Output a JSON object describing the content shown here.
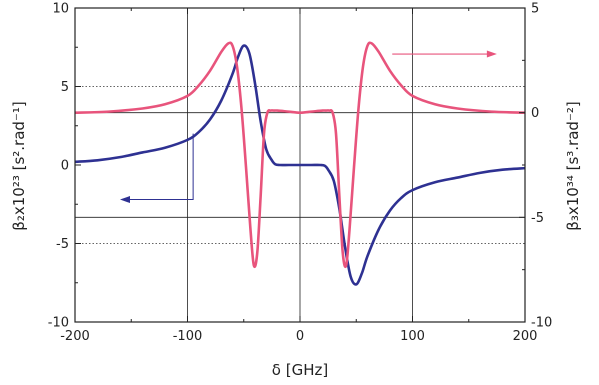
{
  "chart_data": {
    "type": "line",
    "x_axis": {
      "label": "δ [GHz]",
      "range": [
        -200,
        200
      ],
      "ticks": [
        -200,
        -100,
        0,
        100,
        200
      ],
      "tick_labels": [
        "-200",
        "-100",
        "0",
        "100",
        "200"
      ]
    },
    "y_left_axis": {
      "label": "β₂x10²³ [s².rad⁻¹]",
      "range": [
        -10,
        10
      ],
      "ticks": [
        -10,
        -5,
        0,
        5,
        10
      ],
      "tick_labels": [
        "-10",
        "-5",
        "0",
        "5",
        "10"
      ]
    },
    "y_right_axis": {
      "label": "β₃x10³⁴ [s³.rad⁻²]",
      "range": [
        -10,
        5
      ],
      "ticks": [
        -10,
        -5,
        0,
        5
      ],
      "tick_labels": [
        "-10",
        "-5",
        "0",
        "5"
      ]
    },
    "grid": {
      "vertical_solid": [
        -100,
        0,
        100
      ],
      "horizontal_dotted_left": [
        5,
        -5
      ],
      "horizontal_solid_right": [
        0,
        -5
      ]
    },
    "series": [
      {
        "axis": "left",
        "color": "#2e3192",
        "x": [
          -200,
          -180,
          -160,
          -140,
          -120,
          -100,
          -90,
          -80,
          -70,
          -60,
          -55,
          -50,
          -45,
          -40,
          -35,
          -30,
          -25,
          -22,
          -18,
          -10,
          0,
          10,
          18,
          22,
          25,
          30,
          35,
          40,
          45,
          50,
          55,
          60,
          70,
          80,
          90,
          100,
          120,
          140,
          160,
          180,
          200
        ],
        "values": [
          0.2,
          0.3,
          0.5,
          0.8,
          1.1,
          1.6,
          2.1,
          2.9,
          4.1,
          5.8,
          6.9,
          7.6,
          7.1,
          5.2,
          2.8,
          1.0,
          0.3,
          0.05,
          0.0,
          0.0,
          0.0,
          0.0,
          0.0,
          -0.05,
          -0.3,
          -1.0,
          -2.8,
          -5.2,
          -7.1,
          -7.6,
          -6.9,
          -5.8,
          -4.1,
          -2.9,
          -2.1,
          -1.6,
          -1.1,
          -0.8,
          -0.5,
          -0.3,
          -0.2
        ]
      },
      {
        "axis": "right",
        "color": "#e8547c",
        "x": [
          -200,
          -170,
          -140,
          -120,
          -100,
          -90,
          -80,
          -70,
          -64,
          -60,
          -56,
          -52,
          -48,
          -44,
          -41,
          -38,
          -35,
          -32,
          -29,
          -26,
          -23,
          -20,
          -10,
          0,
          10,
          20,
          23,
          26,
          29,
          32,
          35,
          38,
          41,
          44,
          48,
          52,
          56,
          60,
          64,
          70,
          80,
          90,
          100,
          120,
          140,
          170,
          200
        ],
        "values": [
          0.0,
          0.05,
          0.2,
          0.4,
          0.8,
          1.3,
          2.0,
          2.9,
          3.3,
          3.2,
          2.2,
          0.2,
          -2.6,
          -5.6,
          -7.3,
          -6.7,
          -4.0,
          -1.0,
          0.0,
          0.1,
          0.1,
          0.1,
          0.05,
          0.0,
          0.05,
          0.1,
          0.1,
          0.1,
          0.0,
          -1.0,
          -4.0,
          -6.7,
          -7.3,
          -5.6,
          -2.6,
          0.2,
          2.2,
          3.2,
          3.3,
          2.9,
          2.0,
          1.3,
          0.8,
          0.4,
          0.2,
          0.05,
          0.0
        ]
      }
    ],
    "annotations": [
      {
        "type": "arrow",
        "color": "#2e3192",
        "from_x": -95,
        "from_y_left": 2.0,
        "corner_y_left": -2.2,
        "to_x": -160,
        "axis": "left"
      },
      {
        "type": "arrow",
        "color": "#e8547c",
        "from_x": 82,
        "to_x": 175,
        "y_right": 2.8,
        "axis": "right"
      }
    ]
  }
}
